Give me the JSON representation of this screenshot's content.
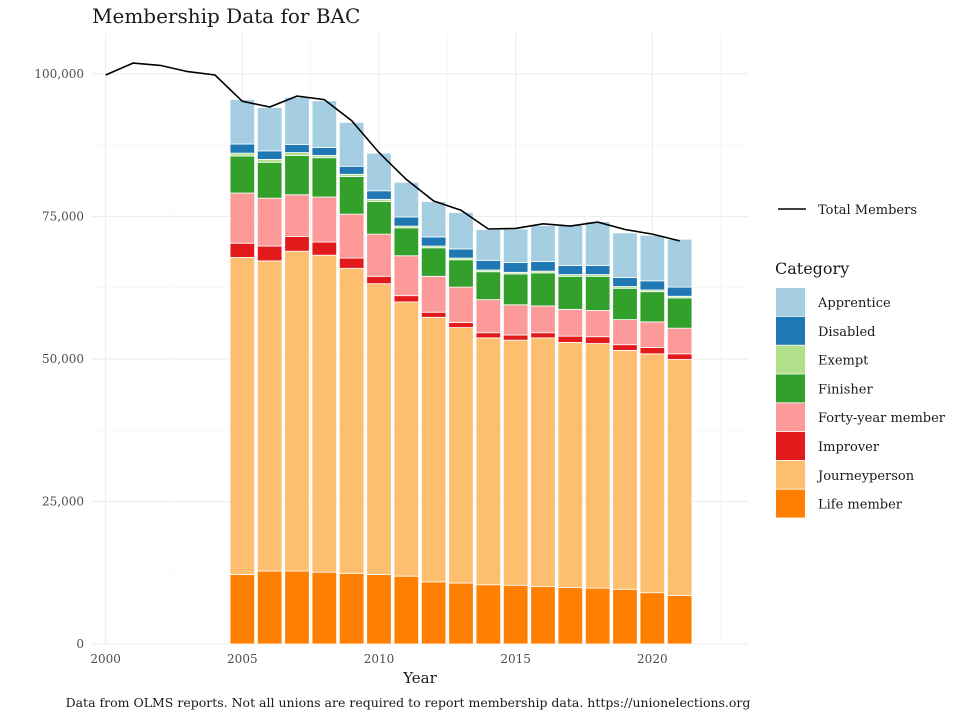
{
  "chart_data": {
    "type": "bar",
    "stacked": true,
    "title": "Membership Data for BAC",
    "xlabel": "Year",
    "ylabel": "",
    "caption": "Data from OLMS reports. Not all unions are required to report membership data. https://unionelections.org",
    "xlim": [
      1999.5,
      2023.5
    ],
    "ylim": [
      0,
      107000
    ],
    "x_ticks": [
      2000,
      2005,
      2010,
      2015,
      2020
    ],
    "y_ticks": [
      0,
      25000,
      50000,
      75000,
      100000
    ],
    "y_tick_labels": [
      "0",
      "25,000",
      "50,000",
      "75,000",
      "100,000"
    ],
    "grid": true,
    "legend_position": "right",
    "legend_title": "Category",
    "line_legend_label": "Total Members",
    "categories": [
      2005,
      2006,
      2007,
      2008,
      2009,
      2010,
      2011,
      2012,
      2013,
      2014,
      2015,
      2016,
      2017,
      2018,
      2019,
      2020,
      2021
    ],
    "series": [
      {
        "name": "Life member",
        "color": "#ff7f00",
        "values": [
          12200,
          12800,
          12800,
          12600,
          12400,
          12200,
          11900,
          10900,
          10700,
          10400,
          10300,
          10100,
          9900,
          9800,
          9600,
          9000,
          8500
        ]
      },
      {
        "name": "Journeyperson",
        "color": "#fdbf6f",
        "values": [
          55600,
          54400,
          56100,
          55600,
          53500,
          51000,
          48100,
          46400,
          44800,
          43300,
          43000,
          43600,
          43000,
          42900,
          41900,
          41900,
          41400
        ]
      },
      {
        "name": "Improver",
        "color": "#e31a1c",
        "values": [
          2500,
          2600,
          2600,
          2300,
          1800,
          1300,
          1100,
          900,
          900,
          900,
          900,
          900,
          1100,
          1200,
          1000,
          1100,
          1000
        ]
      },
      {
        "name": "Forty-year member",
        "color": "#fb9a99",
        "values": [
          8800,
          8400,
          7300,
          7900,
          7700,
          7400,
          7000,
          6300,
          6200,
          5800,
          5300,
          4700,
          4700,
          4600,
          4400,
          4500,
          4500
        ]
      },
      {
        "name": "Finisher",
        "color": "#33a02c",
        "values": [
          6500,
          6300,
          6900,
          6900,
          6600,
          5700,
          4900,
          5000,
          4800,
          4900,
          5400,
          5800,
          5800,
          6000,
          5500,
          5300,
          5300
        ]
      },
      {
        "name": "Exempt",
        "color": "#b2df8a",
        "values": [
          500,
          500,
          500,
          400,
          400,
          400,
          300,
          300,
          300,
          300,
          300,
          300,
          300,
          300,
          300,
          300,
          300
        ]
      },
      {
        "name": "Disabled",
        "color": "#1f78b4",
        "values": [
          1600,
          1500,
          1400,
          1400,
          1400,
          1500,
          1600,
          1600,
          1600,
          1700,
          1700,
          1700,
          1600,
          1600,
          1600,
          1600,
          1600
        ]
      },
      {
        "name": "Apprentice",
        "color": "#a6cee3",
        "values": [
          7800,
          7600,
          8300,
          8200,
          7700,
          6600,
          6100,
          6200,
          6400,
          5400,
          5900,
          6300,
          7100,
          7700,
          7800,
          8000,
          8400
        ]
      }
    ],
    "total_members": {
      "x": [
        2000,
        2001,
        2002,
        2003,
        2004,
        2005,
        2006,
        2007,
        2008,
        2009,
        2010,
        2011,
        2012,
        2013,
        2014,
        2015,
        2016,
        2017,
        2018,
        2019,
        2020,
        2021
      ],
      "y": [
        99800,
        101900,
        101500,
        100400,
        99800,
        95200,
        94200,
        96100,
        95500,
        91800,
        86200,
        81500,
        77700,
        76100,
        72800,
        72900,
        73700,
        73300,
        74000,
        72700,
        71900,
        70700
      ]
    }
  }
}
